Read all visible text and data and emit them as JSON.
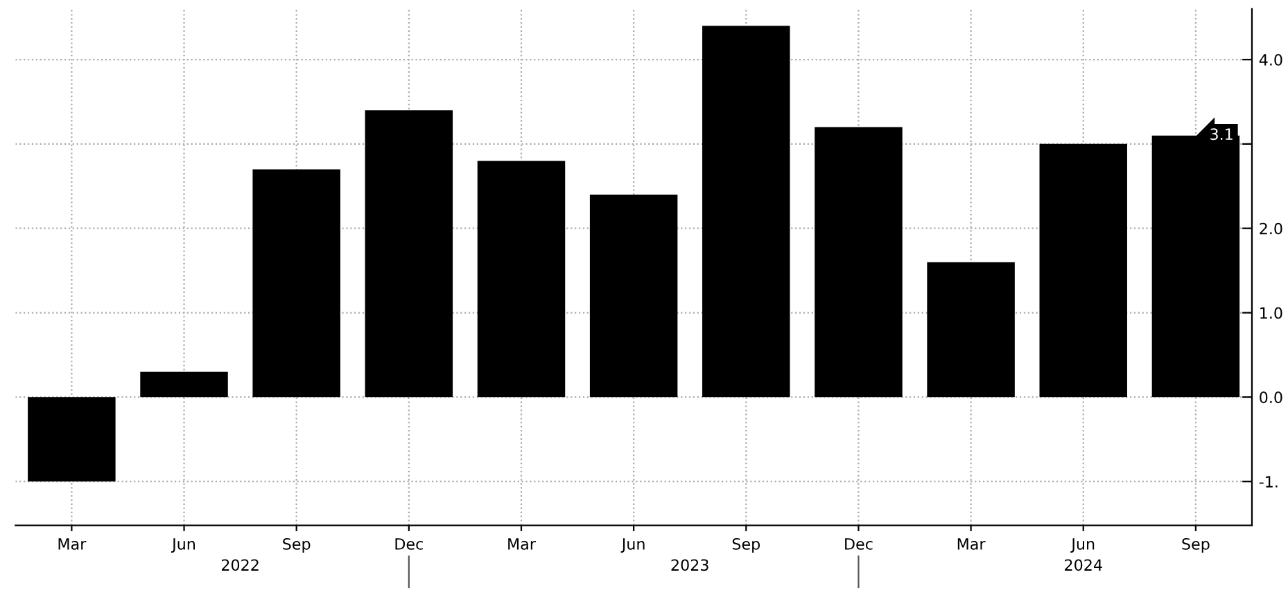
{
  "chart_data": {
    "type": "bar",
    "categories": [
      "Mar",
      "Jun",
      "Sep",
      "Dec",
      "Mar",
      "Jun",
      "Sep",
      "Dec",
      "Mar",
      "Jun",
      "Sep"
    ],
    "values": [
      -1.0,
      0.3,
      2.7,
      3.4,
      2.8,
      2.4,
      4.4,
      3.2,
      1.6,
      3.0,
      3.1
    ],
    "color": "#000000",
    "value_labels": [
      null,
      null,
      null,
      null,
      null,
      null,
      null,
      null,
      null,
      null,
      "3.1"
    ],
    "ylim": [
      -1.52,
      4.6
    ],
    "yticks": [
      {
        "value": -1,
        "label": "-1."
      },
      {
        "value": 0,
        "label": "0.0"
      },
      {
        "value": 1,
        "label": "1.0"
      },
      {
        "value": 2,
        "label": "2.0"
      },
      {
        "value": 3,
        "label": null
      },
      {
        "value": 4,
        "label": "4.0"
      }
    ],
    "annotations": [
      "2022",
      "2023",
      "2024"
    ],
    "grid": true
  }
}
